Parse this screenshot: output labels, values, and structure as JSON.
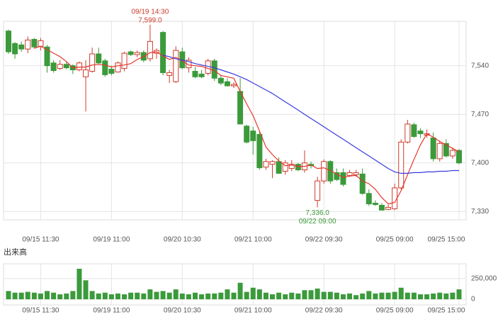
{
  "chart_data": [
    {
      "type": "candlestick",
      "categories": [
        null,
        null,
        null,
        null,
        null,
        "09/15 11:30",
        null,
        null,
        null,
        null,
        null,
        null,
        null,
        null,
        null,
        null,
        "09/19 11:00",
        null,
        null,
        null,
        null,
        null,
        null,
        null,
        null,
        null,
        null,
        "09/20 10:30",
        null,
        null,
        null,
        null,
        null,
        null,
        null,
        null,
        null,
        null,
        "09/21 10:00",
        null,
        null,
        null,
        null,
        null,
        null,
        null,
        null,
        null,
        null,
        "09/22 09:30",
        null,
        null,
        null,
        null,
        null,
        null,
        null,
        null,
        null,
        null,
        "09/25 09:00",
        null,
        null,
        null,
        null,
        null,
        null,
        null,
        null,
        null,
        "09/25 15:00"
      ],
      "open": [
        7590,
        7572,
        7570,
        7564,
        7578,
        7568,
        7567,
        7544,
        7536,
        7542,
        7540,
        7534,
        7524,
        7532,
        7557,
        7547,
        7535,
        7531,
        7536,
        7560,
        7556,
        7559,
        7550,
        7558,
        7588,
        7526,
        7517,
        7560,
        7537,
        7532,
        7528,
        7529,
        7547,
        7522,
        7517,
        7511,
        7503,
        7453,
        7446,
        7441,
        7394,
        7398,
        7402,
        7388,
        7392,
        7398,
        7390,
        7398,
        7346,
        7374,
        7402,
        7386,
        7386,
        7382,
        7383,
        7384,
        7356,
        7342,
        7339,
        7333,
        7334,
        7364,
        7430,
        7455,
        7446,
        7440,
        7436,
        7406,
        7428,
        7410,
        7418
      ],
      "high": [
        7592,
        7574,
        7575,
        7582,
        7580,
        7580,
        7570,
        7548,
        7548,
        7546,
        7542,
        7546,
        7548,
        7566,
        7566,
        7550,
        7540,
        7546,
        7560,
        7562,
        7562,
        7562,
        7599,
        7565,
        7590,
        7534,
        7568,
        7566,
        7552,
        7538,
        7534,
        7550,
        7550,
        7526,
        7522,
        7516,
        7522,
        7455,
        7452,
        7446,
        7406,
        7404,
        7408,
        7404,
        7404,
        7400,
        7418,
        7402,
        7380,
        7405,
        7404,
        7392,
        7392,
        7390,
        7390,
        7392,
        7362,
        7346,
        7342,
        7340,
        7370,
        7434,
        7462,
        7458,
        7450,
        7448,
        7444,
        7432,
        7434,
        7422,
        7420
      ],
      "low": [
        7557,
        7550,
        7560,
        7558,
        7565,
        7562,
        7530,
        7530,
        7534,
        7535,
        7528,
        7532,
        7474,
        7530,
        7542,
        7524,
        7526,
        7530,
        7532,
        7554,
        7552,
        7545,
        7546,
        7550,
        7526,
        7515,
        7515,
        7535,
        7530,
        7522,
        7522,
        7526,
        7518,
        7512,
        7510,
        7508,
        7456,
        7428,
        7412,
        7390,
        7390,
        7378,
        7384,
        7383,
        7388,
        7388,
        7386,
        7392,
        7336,
        7370,
        7370,
        7374,
        7366,
        7380,
        7380,
        7354,
        7338,
        7338,
        7332,
        7332,
        7332,
        7362,
        7428,
        7436,
        7436,
        7436,
        7402,
        7402,
        7408,
        7406,
        7398
      ],
      "close": [
        7560,
        7557,
        7564,
        7577,
        7567,
        7576,
        7540,
        7533,
        7542,
        7537,
        7534,
        7544,
        7534,
        7557,
        7544,
        7527,
        7529,
        7544,
        7558,
        7556,
        7559,
        7548,
        7575,
        7562,
        7530,
        7530,
        7562,
        7537,
        7548,
        7524,
        7524,
        7547,
        7522,
        7515,
        7511,
        7513,
        7456,
        7430,
        7432,
        7393,
        7402,
        7402,
        7385,
        7400,
        7398,
        7390,
        7400,
        7396,
        7374,
        7402,
        7374,
        7376,
        7369,
        7386,
        7386,
        7356,
        7341,
        7340,
        7332,
        7336,
        7364,
        7430,
        7456,
        7438,
        7442,
        7442,
        7406,
        7428,
        7410,
        7418,
        7400
      ],
      "up_color": "#d03a2a",
      "down_color": "#3b9a3b",
      "series": [
        {
          "color": "#e8342a",
          "values": [
            null,
            null,
            null,
            null,
            7565,
            7568,
            7563,
            7558,
            7553,
            7546,
            7537,
            7538,
            7538,
            7541,
            7542,
            7541,
            7538,
            7540,
            7541,
            7543,
            7549,
            7553,
            7559,
            7560,
            7554,
            7549,
            7552,
            7547,
            7541,
            7540,
            7539,
            7536,
            7533,
            7526,
            7524,
            7522,
            7503,
            7485,
            7468,
            7446,
            7423,
            7412,
            7403,
            7396,
            7397,
            7395,
            7395,
            7397,
            7392,
            7393,
            7389,
            7384,
            7379,
            7381,
            7382,
            7374,
            7370,
            7362,
            7350,
            7341,
            7343,
            7360,
            7383,
            7405,
            7426,
            7442,
            7437,
            7431,
            7426,
            7421,
            7416
          ]
        },
        {
          "color": "#3a3ae0",
          "values": [
            null,
            null,
            null,
            null,
            null,
            null,
            null,
            null,
            null,
            null,
            null,
            null,
            null,
            null,
            null,
            null,
            null,
            null,
            null,
            null,
            null,
            null,
            null,
            null,
            7555,
            7553,
            7550,
            7548,
            7546,
            7543,
            7541,
            7539,
            7537,
            7534,
            7531,
            7528,
            7524,
            7520,
            7515,
            7510,
            7505,
            7500,
            7494,
            7488,
            7482,
            7476,
            7470,
            7464,
            7458,
            7452,
            7446,
            7440,
            7434,
            7428,
            7422,
            7416,
            7410,
            7404,
            7398,
            7392,
            7387,
            7385,
            7385,
            7386,
            7386,
            7387,
            7387,
            7388,
            7388,
            7389,
            7389
          ]
        }
      ],
      "ylim": [
        7318,
        7604
      ],
      "yticks": [
        {
          "value": 7330,
          "label": "7,330"
        },
        {
          "value": 7400,
          "label": "7,400"
        },
        {
          "value": 7470,
          "label": "7,470"
        },
        {
          "value": 7540,
          "label": "7,540"
        }
      ],
      "grid": true,
      "annotations": [
        {
          "index": 22,
          "at": "high",
          "texts": [
            "09/19 14:30",
            "7,599.0"
          ]
        },
        {
          "index": 48,
          "at": "low",
          "texts": [
            "7,336.0",
            "09/22 09:00"
          ]
        }
      ]
    },
    {
      "type": "bar",
      "title": "出来高",
      "color": "#3b9a3b",
      "categories": [
        null,
        null,
        null,
        null,
        null,
        "09/15 11:30",
        null,
        null,
        null,
        null,
        null,
        null,
        null,
        null,
        null,
        null,
        "09/19 11:00",
        null,
        null,
        null,
        null,
        null,
        null,
        null,
        null,
        null,
        null,
        "09/20 10:30",
        null,
        null,
        null,
        null,
        null,
        null,
        null,
        null,
        null,
        null,
        "09/21 10:00",
        null,
        null,
        null,
        null,
        null,
        null,
        null,
        null,
        null,
        null,
        "09/22 09:30",
        null,
        null,
        null,
        null,
        null,
        null,
        null,
        null,
        null,
        null,
        "09/25 09:00",
        null,
        null,
        null,
        null,
        null,
        null,
        null,
        null,
        null,
        "09/25 15:00"
      ],
      "values": [
        100000,
        80000,
        80000,
        90000,
        80000,
        70000,
        100000,
        80000,
        60000,
        70000,
        100000,
        370000,
        230000,
        100000,
        70000,
        80000,
        60000,
        70000,
        60000,
        80000,
        80000,
        70000,
        120000,
        90000,
        100000,
        80000,
        120000,
        70000,
        60000,
        80000,
        60000,
        70000,
        70000,
        80000,
        120000,
        80000,
        200000,
        90000,
        140000,
        120000,
        80000,
        60000,
        80000,
        60000,
        80000,
        70000,
        110000,
        110000,
        130000,
        90000,
        90000,
        80000,
        60000,
        70000,
        50000,
        70000,
        100000,
        70000,
        80000,
        80000,
        90000,
        140000,
        80000,
        80000,
        60000,
        60000,
        70000,
        80000,
        70000,
        80000,
        120000
      ],
      "ylim": [
        0,
        430000
      ],
      "yticks": [
        0,
        {
          "value": 250000,
          "label": "250,000"
        }
      ],
      "grid": true
    }
  ]
}
